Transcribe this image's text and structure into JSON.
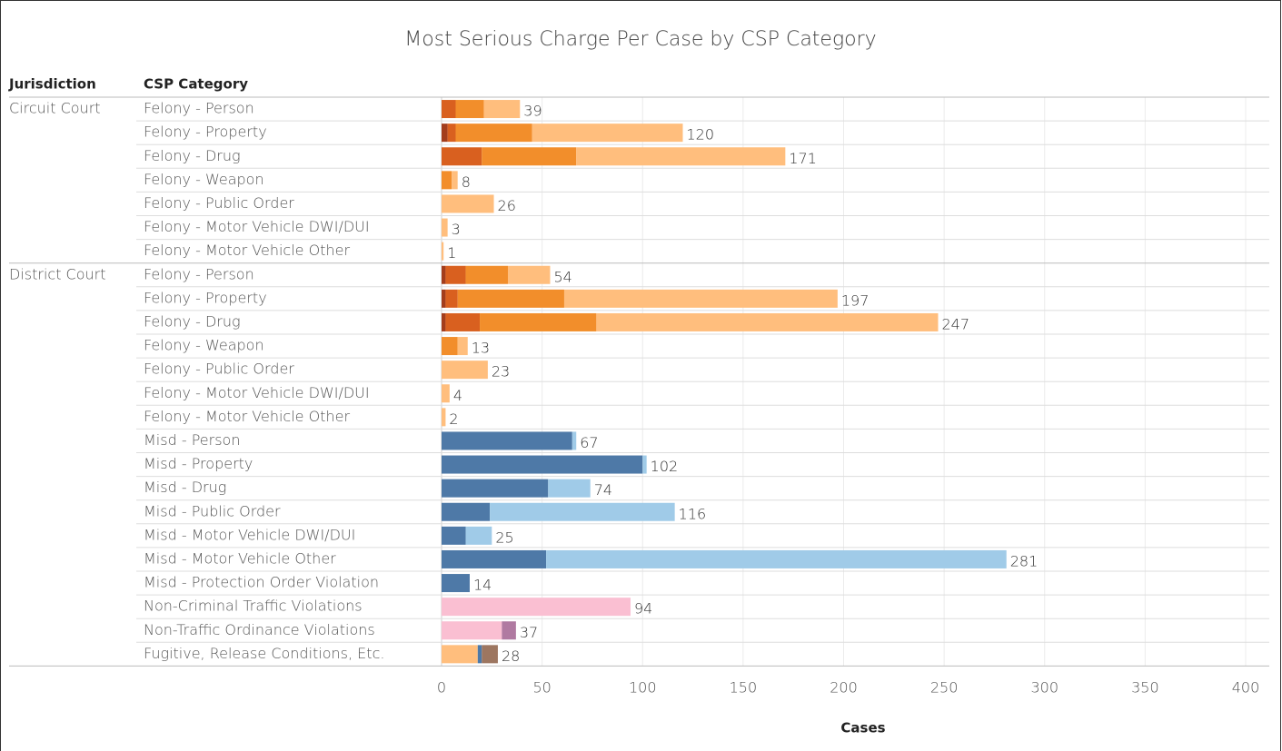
{
  "chart_data": {
    "type": "stacked-bar-horizontal",
    "title": "Most Serious Charge Per Case by CSP Category",
    "row_headers": [
      "Jurisdiction",
      "CSP Category"
    ],
    "xlabel": "Cases",
    "groups": [
      {
        "name": "Circuit Court",
        "categories": [
          "Felony - Person",
          "Felony - Property",
          "Felony - Drug",
          "Felony - Weapon",
          "Felony - Public Order",
          "Felony - Motor Vehicle DWI/DUI",
          "Felony - Motor Vehicle Other"
        ]
      },
      {
        "name": "District Court",
        "categories": [
          "Felony - Person",
          "Felony - Property",
          "Felony - Drug",
          "Felony - Weapon",
          "Felony - Public Order",
          "Felony - Motor Vehicle DWI/DUI",
          "Felony - Motor Vehicle Other",
          "Misd - Person",
          "Misd - Property",
          "Misd - Drug",
          "Misd - Public Order",
          "Misd - Motor Vehicle DWI/DUI",
          "Misd - Motor Vehicle Other",
          "Misd - Protection Order Violation",
          "Non-Criminal Traffic Violations",
          "Non-Traffic Ordinance Violations",
          "Fugitive, Release Conditions, Etc."
        ]
      }
    ],
    "series": [
      {
        "color": "#a33d1c",
        "values": [
          null,
          3,
          null,
          null,
          null,
          null,
          null,
          2,
          2,
          2,
          null,
          null,
          null,
          null,
          null,
          null,
          null,
          null,
          null,
          null,
          null,
          null,
          null,
          null
        ]
      },
      {
        "color": "#d9601f",
        "values": [
          7,
          4,
          20,
          null,
          null,
          null,
          null,
          10,
          6,
          17,
          null,
          null,
          null,
          null,
          null,
          null,
          null,
          null,
          null,
          null,
          null,
          null,
          null,
          null
        ]
      },
      {
        "color": "#f28e2b",
        "values": [
          14,
          38,
          47,
          5,
          null,
          null,
          null,
          21,
          53,
          58,
          8,
          null,
          null,
          null,
          null,
          null,
          null,
          null,
          null,
          null,
          null,
          null,
          null,
          null
        ]
      },
      {
        "color": "#ffbe7d",
        "values": [
          18,
          75,
          104,
          3,
          26,
          3,
          1,
          21,
          136,
          170,
          5,
          23,
          4,
          2,
          null,
          null,
          null,
          null,
          null,
          null,
          null,
          null,
          null,
          18
        ]
      },
      {
        "color": "#4e79a7",
        "values": [
          null,
          null,
          null,
          null,
          null,
          null,
          null,
          null,
          null,
          null,
          null,
          null,
          null,
          null,
          65,
          100,
          53,
          24,
          12,
          52,
          14,
          null,
          null,
          2
        ]
      },
      {
        "color": "#a0cbe8",
        "values": [
          null,
          null,
          null,
          null,
          null,
          null,
          null,
          null,
          null,
          null,
          null,
          null,
          null,
          null,
          2,
          2,
          21,
          92,
          13,
          229,
          null,
          null,
          null,
          null
        ]
      },
      {
        "color": "#fabfd2",
        "values": [
          null,
          null,
          null,
          null,
          null,
          null,
          null,
          null,
          null,
          null,
          null,
          null,
          null,
          null,
          null,
          null,
          null,
          null,
          null,
          null,
          null,
          94,
          30,
          null
        ]
      },
      {
        "color": "#b07aa1",
        "values": [
          null,
          null,
          null,
          null,
          null,
          null,
          null,
          null,
          null,
          null,
          null,
          null,
          null,
          null,
          null,
          null,
          null,
          null,
          null,
          null,
          null,
          null,
          7,
          null
        ]
      },
      {
        "color": "#9d7660",
        "values": [
          null,
          null,
          null,
          null,
          null,
          null,
          null,
          null,
          null,
          null,
          null,
          null,
          null,
          null,
          null,
          null,
          null,
          null,
          null,
          null,
          null,
          null,
          null,
          8
        ]
      }
    ],
    "totals": [
      39,
      120,
      171,
      8,
      26,
      3,
      1,
      54,
      197,
      247,
      13,
      23,
      4,
      2,
      67,
      102,
      74,
      116,
      25,
      281,
      14,
      94,
      37,
      28
    ],
    "xlim": [
      0,
      400
    ],
    "xticks": [
      0,
      50,
      100,
      150,
      200,
      250,
      300,
      350,
      400
    ],
    "grid": true
  }
}
